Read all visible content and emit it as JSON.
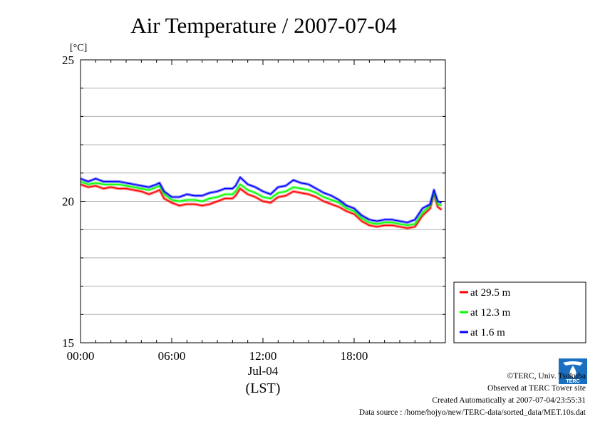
{
  "chart_data": {
    "type": "line",
    "title": "Air Temperature / 2007-07-04",
    "unit": "[°C]",
    "ylim": [
      15,
      25
    ],
    "y_ticks": [
      15,
      20,
      25
    ],
    "x_range_hours": [
      0,
      24
    ],
    "x_ticks": [
      {
        "hour": 0,
        "label": "00:00"
      },
      {
        "hour": 6,
        "label": "06:00"
      },
      {
        "hour": 12,
        "label": "12:00"
      },
      {
        "hour": 18,
        "label": "18:00"
      }
    ],
    "date_label": "Jul-04",
    "xlabel": "(LST)",
    "grid": true,
    "legend_position": "bottom-right, outside plot",
    "series": [
      {
        "name": "at 29.5 m",
        "color": "#ff0000",
        "points": [
          [
            0,
            20.6
          ],
          [
            0.5,
            20.5
          ],
          [
            1,
            20.55
          ],
          [
            1.5,
            20.45
          ],
          [
            2,
            20.5
          ],
          [
            2.5,
            20.45
          ],
          [
            3,
            20.45
          ],
          [
            3.5,
            20.4
          ],
          [
            4,
            20.35
          ],
          [
            4.5,
            20.25
          ],
          [
            5,
            20.35
          ],
          [
            5.2,
            20.4
          ],
          [
            5.5,
            20.1
          ],
          [
            6,
            19.95
          ],
          [
            6.5,
            19.85
          ],
          [
            7,
            19.9
          ],
          [
            7.5,
            19.9
          ],
          [
            8,
            19.85
          ],
          [
            8.5,
            19.9
          ],
          [
            9,
            20.0
          ],
          [
            9.5,
            20.1
          ],
          [
            10,
            20.1
          ],
          [
            10.2,
            20.2
          ],
          [
            10.5,
            20.45
          ],
          [
            11,
            20.25
          ],
          [
            11.5,
            20.15
          ],
          [
            12,
            20.0
          ],
          [
            12.5,
            19.95
          ],
          [
            13,
            20.15
          ],
          [
            13.5,
            20.2
          ],
          [
            14,
            20.35
          ],
          [
            14.5,
            20.3
          ],
          [
            15,
            20.25
          ],
          [
            15.5,
            20.15
          ],
          [
            16,
            20.0
          ],
          [
            16.5,
            19.9
          ],
          [
            17,
            19.8
          ],
          [
            17.5,
            19.65
          ],
          [
            18,
            19.55
          ],
          [
            18.5,
            19.3
          ],
          [
            19,
            19.15
          ],
          [
            19.5,
            19.1
          ],
          [
            20,
            19.15
          ],
          [
            20.5,
            19.15
          ],
          [
            21,
            19.1
          ],
          [
            21.5,
            19.05
          ],
          [
            22,
            19.1
          ],
          [
            22.5,
            19.5
          ],
          [
            23,
            19.75
          ],
          [
            23.25,
            20.25
          ],
          [
            23.5,
            19.8
          ],
          [
            23.75,
            19.7
          ]
        ]
      },
      {
        "name": "at 12.3 m",
        "color": "#00ff00",
        "points": [
          [
            0,
            20.7
          ],
          [
            0.5,
            20.6
          ],
          [
            1,
            20.65
          ],
          [
            1.5,
            20.6
          ],
          [
            2,
            20.6
          ],
          [
            2.5,
            20.6
          ],
          [
            3,
            20.55
          ],
          [
            3.5,
            20.5
          ],
          [
            4,
            20.45
          ],
          [
            4.5,
            20.4
          ],
          [
            5,
            20.5
          ],
          [
            5.2,
            20.55
          ],
          [
            5.5,
            20.25
          ],
          [
            6,
            20.05
          ],
          [
            6.5,
            20.0
          ],
          [
            7,
            20.05
          ],
          [
            7.5,
            20.05
          ],
          [
            8,
            20.0
          ],
          [
            8.5,
            20.1
          ],
          [
            9,
            20.15
          ],
          [
            9.5,
            20.25
          ],
          [
            10,
            20.25
          ],
          [
            10.2,
            20.35
          ],
          [
            10.5,
            20.6
          ],
          [
            11,
            20.4
          ],
          [
            11.5,
            20.3
          ],
          [
            12,
            20.15
          ],
          [
            12.5,
            20.1
          ],
          [
            13,
            20.3
          ],
          [
            13.5,
            20.35
          ],
          [
            14,
            20.5
          ],
          [
            14.5,
            20.45
          ],
          [
            15,
            20.4
          ],
          [
            15.5,
            20.3
          ],
          [
            16,
            20.15
          ],
          [
            16.5,
            20.05
          ],
          [
            17,
            19.95
          ],
          [
            17.5,
            19.75
          ],
          [
            18,
            19.65
          ],
          [
            18.5,
            19.4
          ],
          [
            19,
            19.25
          ],
          [
            19.5,
            19.2
          ],
          [
            20,
            19.25
          ],
          [
            20.5,
            19.25
          ],
          [
            21,
            19.2
          ],
          [
            21.5,
            19.15
          ],
          [
            22,
            19.2
          ],
          [
            22.5,
            19.6
          ],
          [
            23,
            19.85
          ],
          [
            23.25,
            20.3
          ],
          [
            23.5,
            19.9
          ],
          [
            23.75,
            19.85
          ]
        ]
      },
      {
        "name": "at 1.6 m",
        "color": "#0000ff",
        "points": [
          [
            0,
            20.8
          ],
          [
            0.5,
            20.7
          ],
          [
            1,
            20.8
          ],
          [
            1.5,
            20.7
          ],
          [
            2,
            20.7
          ],
          [
            2.5,
            20.7
          ],
          [
            3,
            20.65
          ],
          [
            3.5,
            20.6
          ],
          [
            4,
            20.55
          ],
          [
            4.5,
            20.5
          ],
          [
            5,
            20.6
          ],
          [
            5.2,
            20.65
          ],
          [
            5.5,
            20.35
          ],
          [
            6,
            20.15
          ],
          [
            6.5,
            20.15
          ],
          [
            7,
            20.25
          ],
          [
            7.5,
            20.2
          ],
          [
            8,
            20.2
          ],
          [
            8.5,
            20.3
          ],
          [
            9,
            20.35
          ],
          [
            9.5,
            20.45
          ],
          [
            10,
            20.45
          ],
          [
            10.2,
            20.55
          ],
          [
            10.5,
            20.85
          ],
          [
            11,
            20.6
          ],
          [
            11.5,
            20.5
          ],
          [
            12,
            20.35
          ],
          [
            12.5,
            20.25
          ],
          [
            13,
            20.5
          ],
          [
            13.5,
            20.55
          ],
          [
            14,
            20.75
          ],
          [
            14.5,
            20.65
          ],
          [
            15,
            20.6
          ],
          [
            15.5,
            20.45
          ],
          [
            16,
            20.3
          ],
          [
            16.5,
            20.2
          ],
          [
            17,
            20.05
          ],
          [
            17.5,
            19.85
          ],
          [
            18,
            19.75
          ],
          [
            18.5,
            19.5
          ],
          [
            19,
            19.35
          ],
          [
            19.5,
            19.3
          ],
          [
            20,
            19.35
          ],
          [
            20.5,
            19.35
          ],
          [
            21,
            19.3
          ],
          [
            21.5,
            19.25
          ],
          [
            22,
            19.35
          ],
          [
            22.5,
            19.75
          ],
          [
            23,
            19.9
          ],
          [
            23.25,
            20.4
          ],
          [
            23.5,
            20.0
          ],
          [
            23.75,
            19.95
          ]
        ]
      }
    ]
  },
  "footer": {
    "copyright": "©TERC, Univ. Tsukuba",
    "observed": "Observed at TERC Tower site",
    "created": "Created Automatically at 2007-07-04/23:55:31",
    "source": "Data source : /home/hojyo/new/TERC-data/sorted_data/MET.10s.dat"
  },
  "logo": {
    "text": "TERC",
    "color": "#1a6fc0"
  }
}
